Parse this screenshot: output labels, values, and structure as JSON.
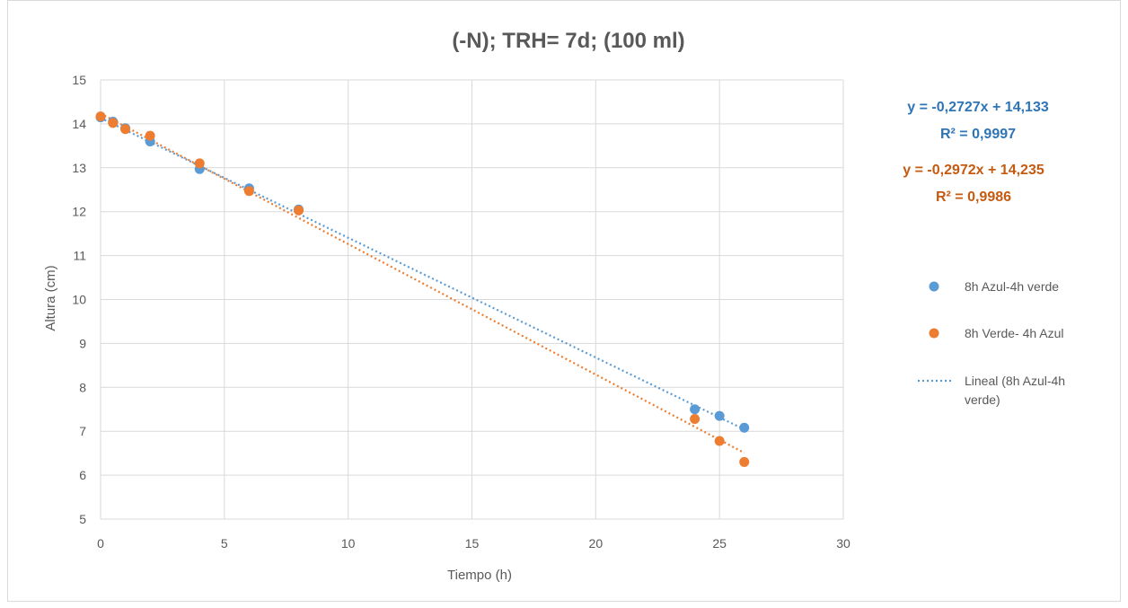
{
  "chart_data": {
    "type": "scatter",
    "title": "(-N); TRH= 7d; (100 ml)",
    "xlabel": "Tiempo (h)",
    "ylabel": "Altura (cm)",
    "xlim": [
      0,
      30
    ],
    "ylim": [
      5,
      15
    ],
    "xticks": [
      "0",
      "5",
      "10",
      "15",
      "20",
      "25",
      "30"
    ],
    "yticks": [
      "5",
      "6",
      "7",
      "8",
      "9",
      "10",
      "11",
      "12",
      "13",
      "14",
      "15"
    ],
    "grid": true,
    "legend_position": "right",
    "series": [
      {
        "name": "8h Azul-4h verde",
        "color": "#5b9bd5",
        "points": [
          {
            "x": 0,
            "y": 14.15
          },
          {
            "x": 0.5,
            "y": 14.05
          },
          {
            "x": 1,
            "y": 13.9
          },
          {
            "x": 2,
            "y": 13.6
          },
          {
            "x": 4,
            "y": 12.97
          },
          {
            "x": 6,
            "y": 12.53
          },
          {
            "x": 8,
            "y": 12.05
          },
          {
            "x": 24,
            "y": 7.5
          },
          {
            "x": 25,
            "y": 7.35
          },
          {
            "x": 26,
            "y": 7.08
          }
        ],
        "trendline": {
          "slope": -0.2727,
          "intercept": 14.133,
          "x_range": [
            0,
            26
          ]
        },
        "equation": "y = -0,2727x + 14,133",
        "r2": "R² = 0,9997"
      },
      {
        "name": "8h Verde- 4h Azul",
        "color": "#ed7d31",
        "points": [
          {
            "x": 0,
            "y": 14.17
          },
          {
            "x": 0.5,
            "y": 14.02
          },
          {
            "x": 1,
            "y": 13.88
          },
          {
            "x": 2,
            "y": 13.73
          },
          {
            "x": 4,
            "y": 13.1
          },
          {
            "x": 6,
            "y": 12.47
          },
          {
            "x": 8,
            "y": 12.03
          },
          {
            "x": 24,
            "y": 7.28
          },
          {
            "x": 25,
            "y": 6.78
          },
          {
            "x": 26,
            "y": 6.3
          }
        ],
        "trendline": {
          "slope": -0.2972,
          "intercept": 14.235,
          "x_range": [
            0,
            26
          ]
        },
        "equation": "y = -0,2972x + 14,235",
        "r2": "R² = 0,9986"
      }
    ],
    "legend": [
      {
        "label": "8h Azul-4h verde",
        "kind": "marker",
        "color": "#5b9bd5"
      },
      {
        "label": "8h Verde- 4h Azul",
        "kind": "marker",
        "color": "#ed7d31"
      },
      {
        "label_lines": [
          "Lineal (8h Azul-4h",
          "verde)"
        ],
        "kind": "dotted-line",
        "color": "#5b9bd5"
      }
    ]
  }
}
